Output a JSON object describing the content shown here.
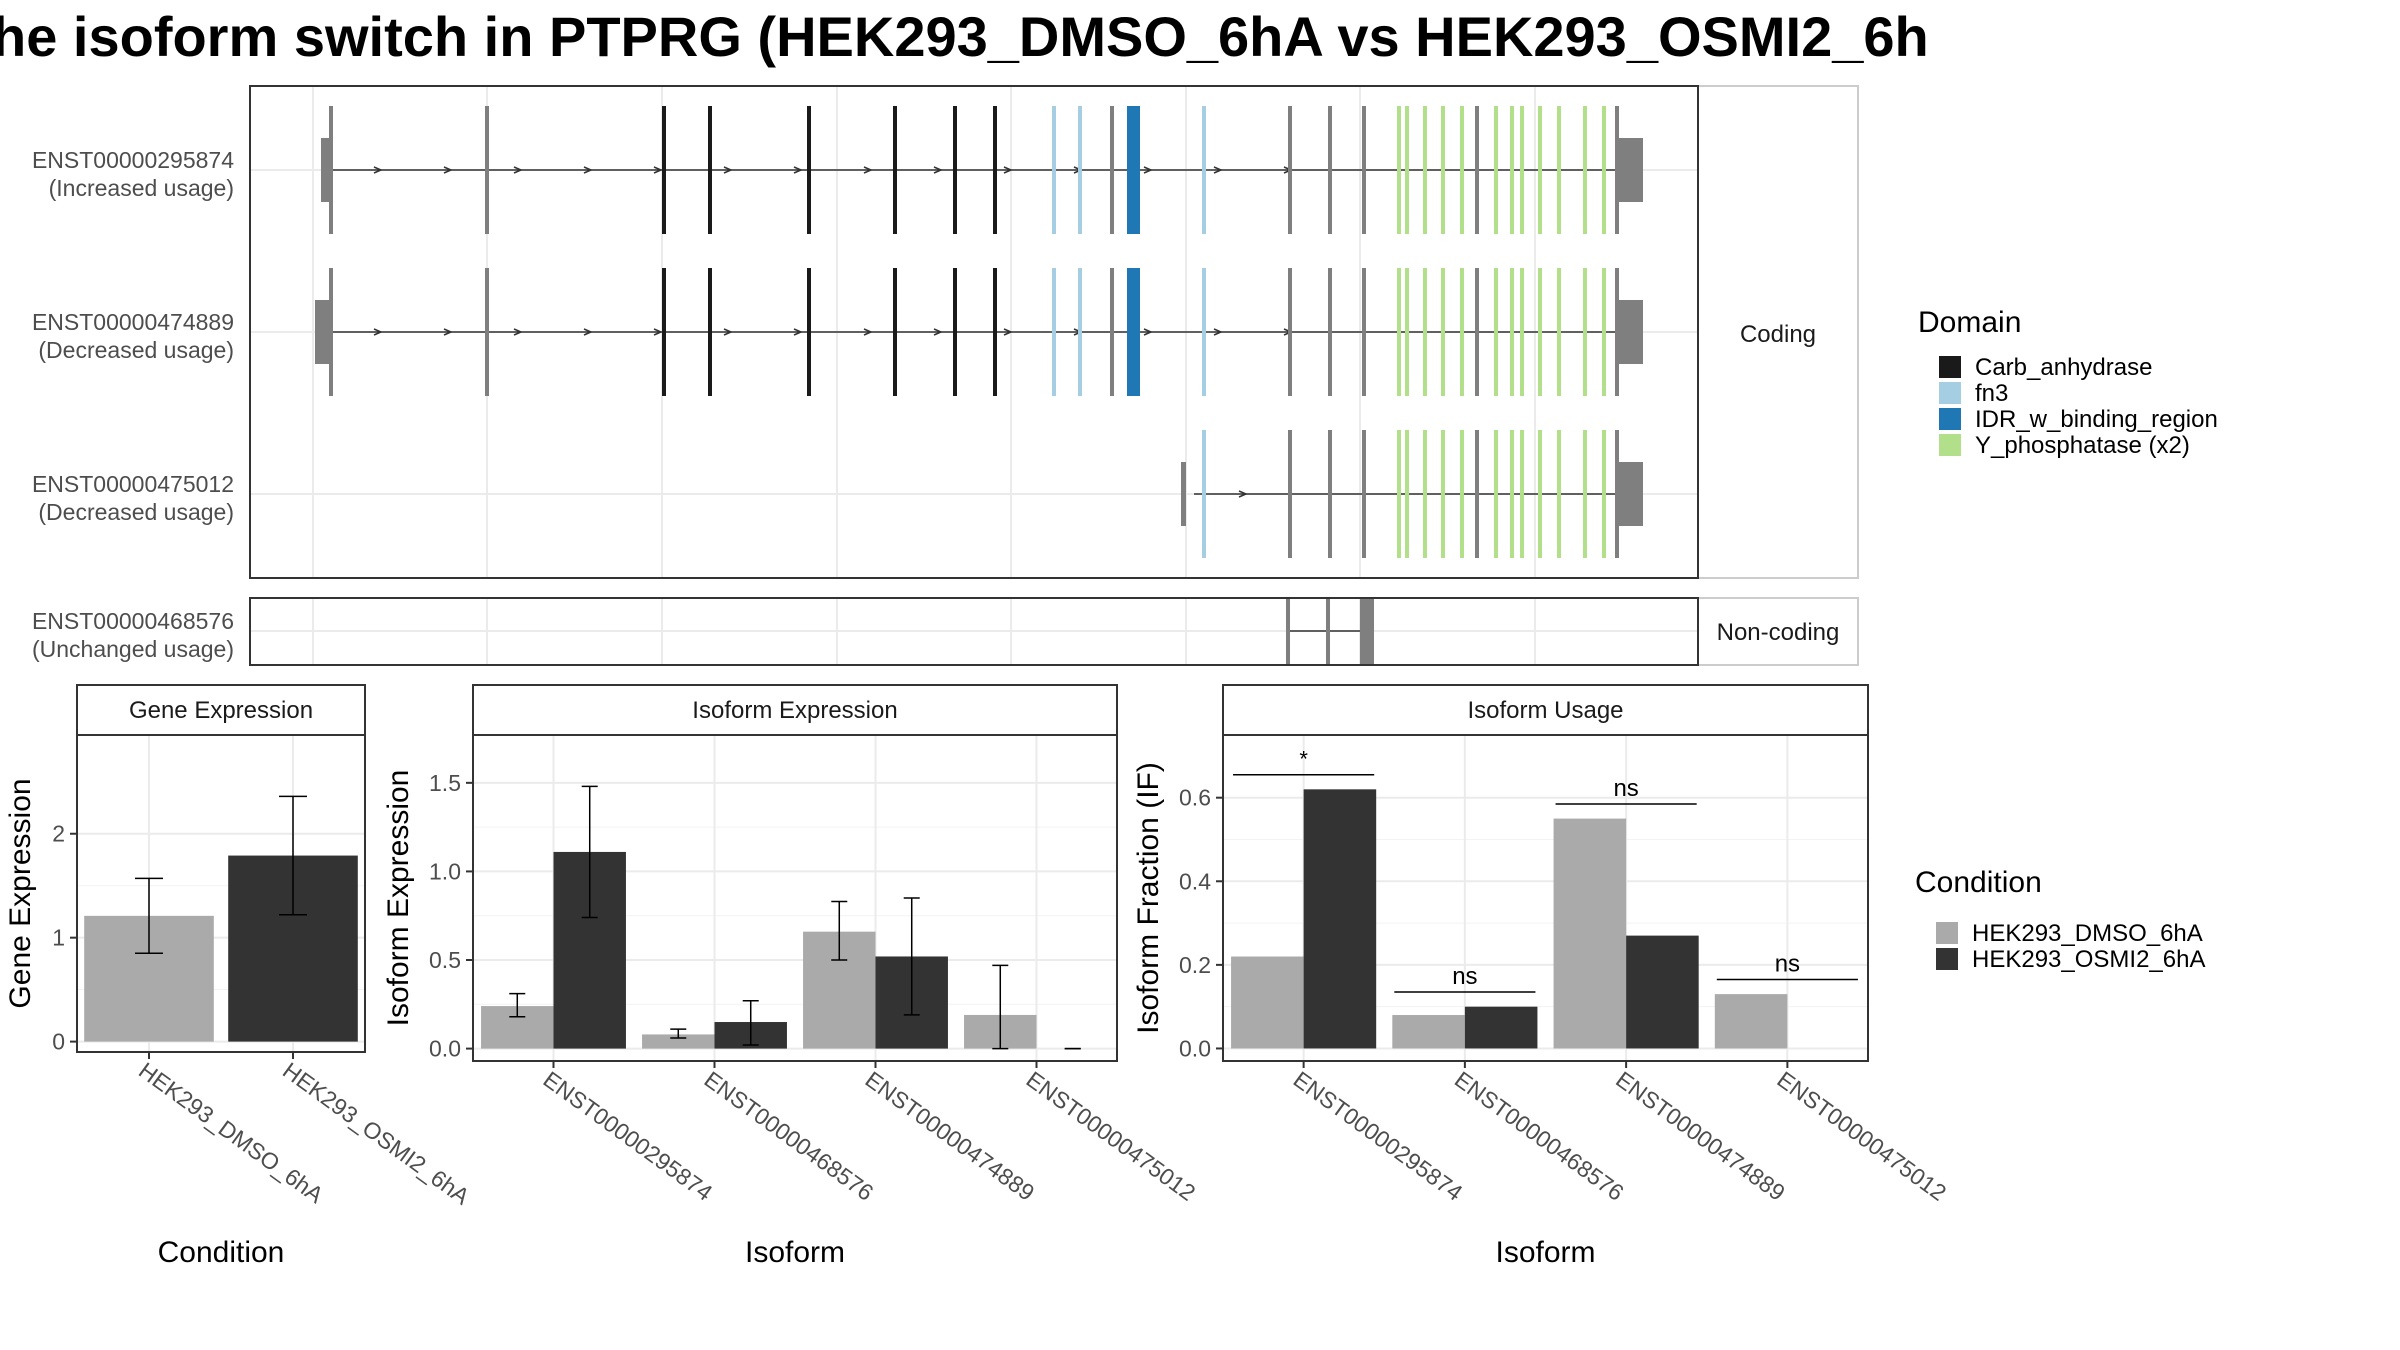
{
  "title": "he isoform switch in PTPRG (HEK293_DMSO_6hA vs HEK293_OSMI2_6h",
  "colors": {
    "Carb_anhydrase": "#1a1a1a",
    "fn3": "#a6cee3",
    "IDR_w_binding_region": "#1f78b4",
    "Y_phosphatase": "#b2df8a",
    "exon": "#7f7f7f",
    "cond1": "#aaaaaa",
    "cond2": "#333333",
    "grid": "#ebebeb",
    "panel_border": "#333333",
    "strip_border": "#cccccc"
  },
  "structure": {
    "coding_strip": "Coding",
    "noncoding_strip": "Non-coding",
    "isoforms": [
      {
        "id": "ENST00000295874",
        "usage": "(Increased usage)"
      },
      {
        "id": "ENST00000474889",
        "usage": "(Decreased usage)"
      },
      {
        "id": "ENST00000475012",
        "usage": "(Decreased usage)"
      },
      {
        "id": "ENST00000468576",
        "usage": "(Unchanged usage)"
      }
    ]
  },
  "legend_domain": {
    "title": "Domain",
    "items": [
      {
        "label": "Carb_anhydrase",
        "color_key": "Carb_anhydrase"
      },
      {
        "label": "fn3",
        "color_key": "fn3"
      },
      {
        "label": "IDR_w_binding_region",
        "color_key": "IDR_w_binding_region"
      },
      {
        "label": "Y_phosphatase (x2)",
        "color_key": "Y_phosphatase"
      }
    ]
  },
  "legend_condition": {
    "title": "Condition",
    "items": [
      {
        "label": "HEK293_DMSO_6hA",
        "color_key": "cond1"
      },
      {
        "label": "HEK293_OSMI2_6hA",
        "color_key": "cond2"
      }
    ]
  },
  "chart_data": [
    {
      "type": "bar",
      "title": "Gene Expression",
      "xlabel": "Condition",
      "ylabel": "Gene Expression",
      "ylim": [
        -0.1,
        2.95
      ],
      "yticks": [
        0,
        1,
        2
      ],
      "categories": [
        "HEK293_DMSO_6hA",
        "HEK293_OSMI2_6hA"
      ],
      "values": [
        1.21,
        1.79
      ],
      "error_low": [
        0.85,
        1.22
      ],
      "error_high": [
        1.57,
        2.36
      ]
    },
    {
      "type": "bar",
      "title": "Isoform Expression",
      "xlabel": "Isoform",
      "ylabel": "Isoform Expression",
      "ylim": [
        -0.07,
        1.77
      ],
      "yticks": [
        "0.0",
        "0.5",
        "1.0",
        "1.5"
      ],
      "categories": [
        "ENST00000295874",
        "ENST00000468576",
        "ENST00000474889",
        "ENST00000475012"
      ],
      "series": [
        {
          "name": "HEK293_DMSO_6hA",
          "values": [
            0.24,
            0.08,
            0.66,
            0.19
          ],
          "error_low": [
            0.18,
            0.06,
            0.5,
            0.0
          ],
          "error_high": [
            0.31,
            0.11,
            0.83,
            0.47
          ]
        },
        {
          "name": "HEK293_OSMI2_6hA",
          "values": [
            1.11,
            0.15,
            0.52,
            0.0
          ],
          "error_low": [
            0.74,
            0.02,
            0.19,
            0.0
          ],
          "error_high": [
            1.48,
            0.27,
            0.85,
            0.0
          ]
        }
      ]
    },
    {
      "type": "bar",
      "title": "Isoform Usage",
      "xlabel": "Isoform",
      "ylabel": "Isoform Fraction (IF)",
      "ylim": [
        -0.03,
        0.75
      ],
      "yticks": [
        "0.0",
        "0.2",
        "0.4",
        "0.6"
      ],
      "categories": [
        "ENST00000295874",
        "ENST00000468576",
        "ENST00000474889",
        "ENST00000475012"
      ],
      "series": [
        {
          "name": "HEK293_DMSO_6hA",
          "values": [
            0.22,
            0.08,
            0.55,
            0.13
          ]
        },
        {
          "name": "HEK293_OSMI2_6hA",
          "values": [
            0.62,
            0.1,
            0.27,
            0.0
          ]
        }
      ],
      "significance": [
        "*",
        "ns",
        "ns",
        "ns"
      ],
      "significance_y": [
        0.655,
        0.135,
        0.585,
        0.165
      ]
    }
  ]
}
